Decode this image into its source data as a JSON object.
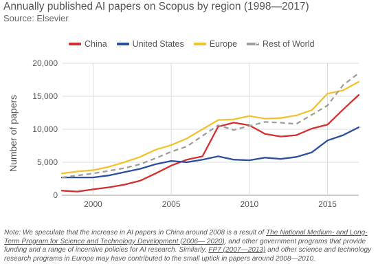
{
  "header": {
    "title": "Annually published AI papers on Scopus by region (1998—2017)",
    "source": "Source: Elsevier"
  },
  "note": {
    "part1": "Note: We speculate that the increase in AI papers in China around 2008 is a result of ",
    "link1": "The National Medium- and Long-Term Program for Science and Technology Development (2006— 2020)",
    "part2": ", and other government programs that provide funding and a range of incentive policies for AI research. Similarly, ",
    "link2": "FP7 (2007—2013)",
    "part3": " and other science and technology research programs in Europe may have contributed to the small uptick in papers around 2008—2010."
  },
  "chart_data": {
    "type": "line",
    "title": "Annually published AI papers on Scopus by region (1998—2017)",
    "subtitle": "Source: Elsevier",
    "xlabel": "",
    "ylabel": "Number of papers",
    "x": [
      1998,
      1999,
      2000,
      2001,
      2002,
      2003,
      2004,
      2005,
      2006,
      2007,
      2008,
      2009,
      2010,
      2011,
      2012,
      2013,
      2014,
      2015,
      2016,
      2017
    ],
    "xlim": [
      1998,
      2017
    ],
    "ylim": [
      0,
      20000
    ],
    "x_ticks": [
      2000,
      2005,
      2010,
      2015
    ],
    "y_ticks": [
      0,
      5000,
      10000,
      15000,
      20000
    ],
    "y_tick_labels": [
      "0",
      "5,000",
      "10,000",
      "15,000",
      "20,000"
    ],
    "grid": true,
    "legend_position": "top",
    "series": [
      {
        "name": "China",
        "color": "#d32f2f",
        "dashed": false,
        "values": [
          700,
          550,
          900,
          1200,
          1600,
          2200,
          3300,
          4500,
          5400,
          5900,
          10400,
          11000,
          10600,
          9300,
          8900,
          9100,
          10100,
          10700,
          13000,
          15200
        ]
      },
      {
        "name": "United States",
        "color": "#2b4f9e",
        "dashed": false,
        "values": [
          2700,
          2700,
          2700,
          3000,
          3500,
          4000,
          4700,
          5200,
          5000,
          5400,
          5900,
          5400,
          5300,
          5700,
          5500,
          5800,
          6500,
          8300,
          9100,
          10300
        ]
      },
      {
        "name": "Europe",
        "color": "#f2c12e",
        "dashed": false,
        "values": [
          3300,
          3600,
          3800,
          4300,
          5000,
          5800,
          6900,
          7600,
          8600,
          10000,
          11400,
          11500,
          12000,
          11600,
          11700,
          12100,
          12900,
          15400,
          15900,
          17200
        ]
      },
      {
        "name": "Rest of World",
        "color": "#9e9e9e",
        "dashed": true,
        "values": [
          2700,
          3000,
          3300,
          3700,
          4100,
          4700,
          5600,
          6600,
          7400,
          9000,
          10600,
          9900,
          10500,
          11100,
          11000,
          10800,
          12200,
          13600,
          16700,
          18500
        ]
      }
    ]
  }
}
